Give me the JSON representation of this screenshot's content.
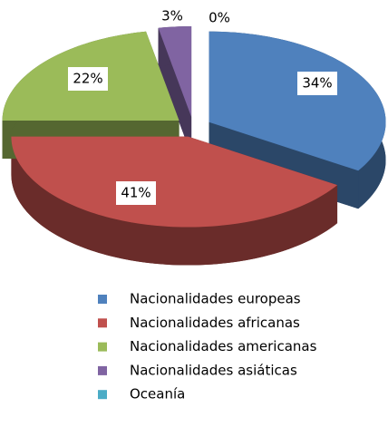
{
  "chart_data": {
    "type": "pie",
    "categories": [
      "Nacionalidades europeas",
      "Nacionalidades africanas",
      "Nacionalidades americanas",
      "Nacionalidades asiáticas",
      "Oceanía"
    ],
    "values": [
      34,
      41,
      22,
      3,
      0
    ],
    "value_labels": [
      "34%",
      "41%",
      "22%",
      "3%",
      "0%"
    ],
    "colors": [
      "#4f81bd",
      "#c0504d",
      "#9bbb59",
      "#8064a2",
      "#4bacc6"
    ],
    "legend": "bottom"
  }
}
